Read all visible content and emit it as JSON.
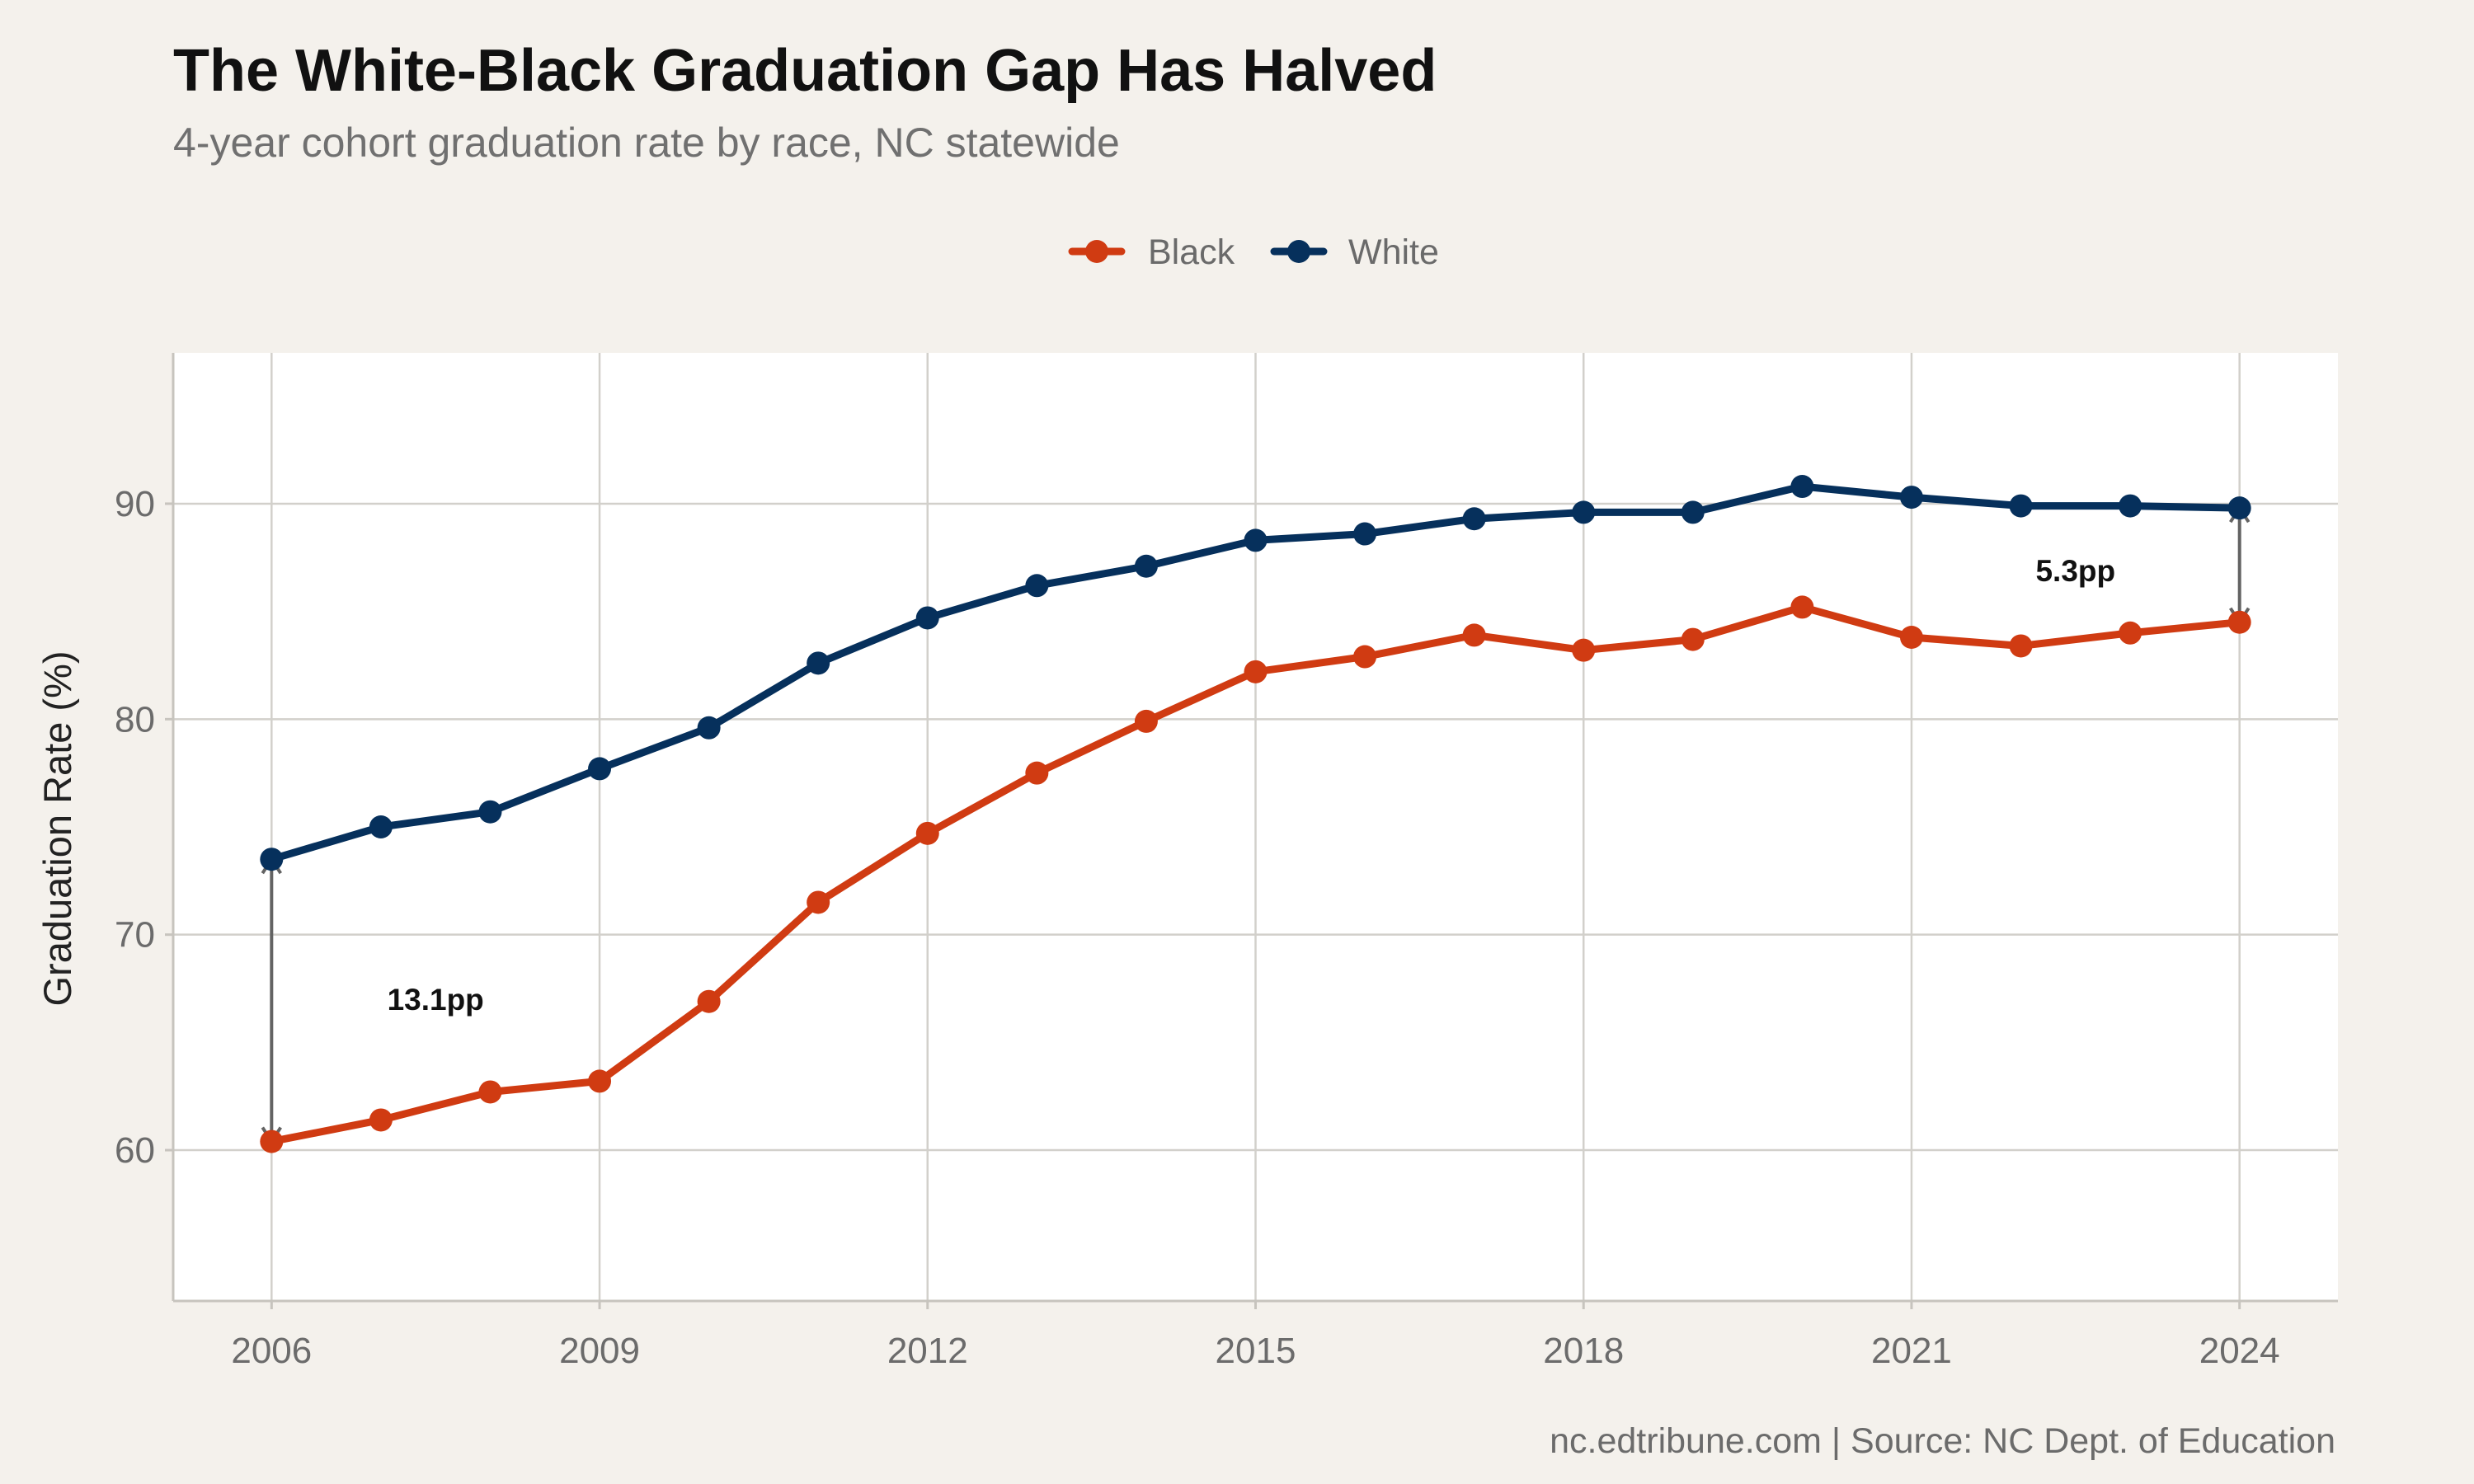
{
  "chart_data": {
    "type": "line",
    "title": "The White-Black Graduation Gap Has Halved",
    "subtitle": "4-year cohort graduation rate by race, NC statewide",
    "xlabel": "",
    "ylabel": "Graduation Rate (%)",
    "xlim": [
      2005.1,
      2024.9
    ],
    "ylim": [
      53,
      97
    ],
    "x_ticks": [
      2006,
      2009,
      2012,
      2015,
      2018,
      2021,
      2024
    ],
    "y_ticks": [
      60,
      70,
      80,
      90
    ],
    "grid": true,
    "legend_position": "top",
    "x": [
      2006,
      2007,
      2008,
      2009,
      2010,
      2011,
      2012,
      2013,
      2014,
      2015,
      2016,
      2017,
      2018,
      2019,
      2020,
      2021,
      2022,
      2023,
      2024
    ],
    "series": [
      {
        "name": "Black",
        "color": "#d03b12",
        "values": [
          60.4,
          61.4,
          62.7,
          63.2,
          66.9,
          71.5,
          74.7,
          77.5,
          79.9,
          82.2,
          82.9,
          83.9,
          83.2,
          83.7,
          85.2,
          83.8,
          83.4,
          84.0,
          84.5
        ]
      },
      {
        "name": "White",
        "color": "#06305c",
        "values": [
          73.5,
          75.0,
          75.7,
          77.7,
          79.6,
          82.6,
          84.7,
          86.2,
          87.1,
          88.3,
          88.6,
          89.3,
          89.6,
          89.6,
          90.8,
          90.3,
          89.9,
          89.9,
          89.8
        ]
      }
    ],
    "annotations": [
      {
        "x": 2006,
        "y_from": 60.4,
        "y_to": 73.5,
        "label": "13.1pp",
        "label_x": 2007.5,
        "label_y": 67.0
      },
      {
        "x": 2024,
        "y_from": 84.5,
        "y_to": 89.8,
        "label": "5.3pp",
        "label_x": 2022.5,
        "label_y": 86.9
      }
    ],
    "caption": "nc.edtribune.com | Source: NC Dept. of Education"
  }
}
